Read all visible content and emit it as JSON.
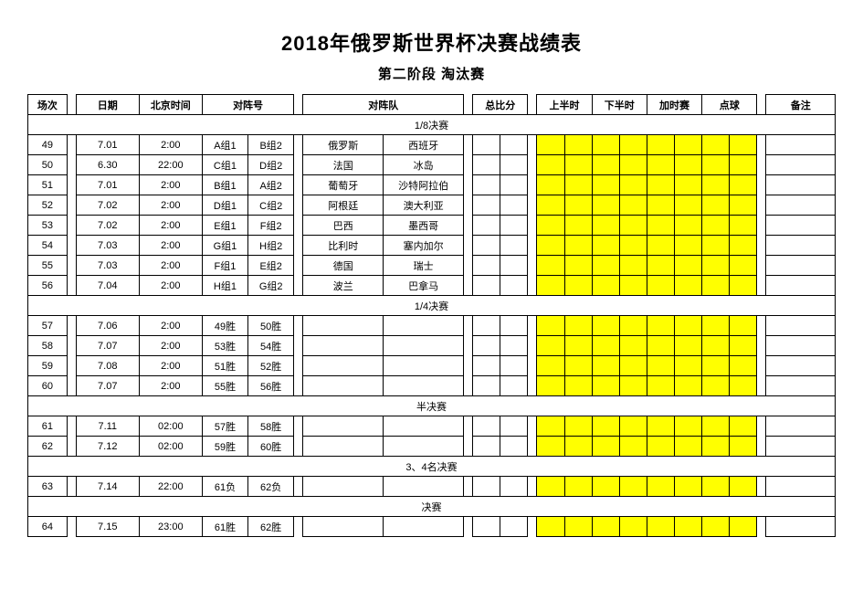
{
  "title": "2018年俄罗斯世界杯决赛战绩表",
  "subtitle": "第二阶段 淘汰赛",
  "colors": {
    "highlight": "#ffff00",
    "border": "#000000",
    "bg": "#ffffff"
  },
  "headers": {
    "match": "场次",
    "date": "日期",
    "time": "北京时间",
    "code": "对阵号",
    "teams": "对阵队",
    "score": "总比分",
    "first_half": "上半时",
    "second_half": "下半时",
    "extra": "加时赛",
    "pk": "点球",
    "note": "备注"
  },
  "sections": [
    {
      "label": "1/8决赛",
      "rows": [
        {
          "no": "49",
          "date": "7.01",
          "time": "2:00",
          "code1": "A组1",
          "code2": "B组2",
          "team1": "俄罗斯",
          "team2": "西班牙"
        },
        {
          "no": "50",
          "date": "6.30",
          "time": "22:00",
          "code1": "C组1",
          "code2": "D组2",
          "team1": "法国",
          "team2": "冰岛"
        },
        {
          "no": "51",
          "date": "7.01",
          "time": "2:00",
          "code1": "B组1",
          "code2": "A组2",
          "team1": "葡萄牙",
          "team2": "沙特阿拉伯"
        },
        {
          "no": "52",
          "date": "7.02",
          "time": "2:00",
          "code1": "D组1",
          "code2": "C组2",
          "team1": "阿根廷",
          "team2": "澳大利亚"
        },
        {
          "no": "53",
          "date": "7.02",
          "time": "2:00",
          "code1": "E组1",
          "code2": "F组2",
          "team1": "巴西",
          "team2": "墨西哥"
        },
        {
          "no": "54",
          "date": "7.03",
          "time": "2:00",
          "code1": "G组1",
          "code2": "H组2",
          "team1": "比利时",
          "team2": "塞内加尔"
        },
        {
          "no": "55",
          "date": "7.03",
          "time": "2:00",
          "code1": "F组1",
          "code2": "E组2",
          "team1": "德国",
          "team2": "瑞士"
        },
        {
          "no": "56",
          "date": "7.04",
          "time": "2:00",
          "code1": "H组1",
          "code2": "G组2",
          "team1": "波兰",
          "team2": "巴拿马"
        }
      ]
    },
    {
      "label": "1/4决赛",
      "rows": [
        {
          "no": "57",
          "date": "7.06",
          "time": "2:00",
          "code1": "49胜",
          "code2": "50胜",
          "team1": "",
          "team2": ""
        },
        {
          "no": "58",
          "date": "7.07",
          "time": "2:00",
          "code1": "53胜",
          "code2": "54胜",
          "team1": "",
          "team2": ""
        },
        {
          "no": "59",
          "date": "7.08",
          "time": "2:00",
          "code1": "51胜",
          "code2": "52胜",
          "team1": "",
          "team2": ""
        },
        {
          "no": "60",
          "date": "7.07",
          "time": "2:00",
          "code1": "55胜",
          "code2": "56胜",
          "team1": "",
          "team2": ""
        }
      ]
    },
    {
      "label": "半决赛",
      "rows": [
        {
          "no": "61",
          "date": "7.11",
          "time": "02:00",
          "code1": "57胜",
          "code2": "58胜",
          "team1": "",
          "team2": ""
        },
        {
          "no": "62",
          "date": "7.12",
          "time": "02:00",
          "code1": "59胜",
          "code2": "60胜",
          "team1": "",
          "team2": ""
        }
      ]
    },
    {
      "label": "3、4名决赛",
      "rows": [
        {
          "no": "63",
          "date": "7.14",
          "time": "22:00",
          "code1": "61负",
          "code2": "62负",
          "team1": "",
          "team2": ""
        }
      ]
    },
    {
      "label": "决赛",
      "rows": [
        {
          "no": "64",
          "date": "7.15",
          "time": "23:00",
          "code1": "61胜",
          "code2": "62胜",
          "team1": "",
          "team2": ""
        }
      ]
    }
  ]
}
